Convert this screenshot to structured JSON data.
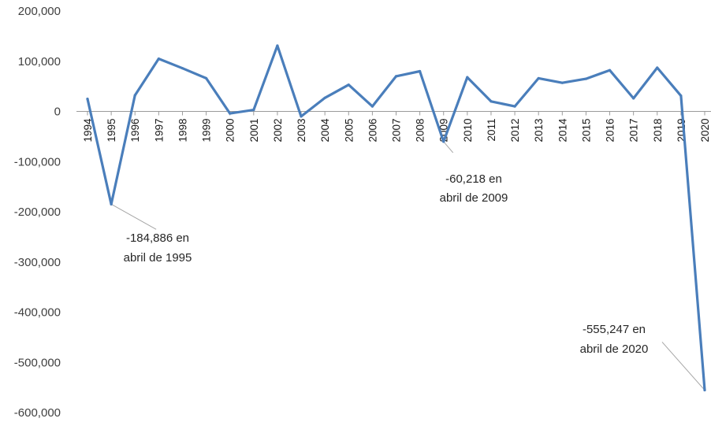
{
  "chart_data": {
    "type": "line",
    "title": "",
    "xlabel": "",
    "ylabel": "",
    "ylim": [
      -600000,
      200000
    ],
    "y_ticks": [
      200000,
      100000,
      0,
      -100000,
      -200000,
      -300000,
      -400000,
      -500000,
      -600000
    ],
    "y_tick_labels": [
      "200,000",
      "100,000",
      "0",
      "-100,000",
      "-200,000",
      "-300,000",
      "-400,000",
      "-500,000",
      "-600,000"
    ],
    "x": [
      "1994",
      "1995",
      "1996",
      "1997",
      "1998",
      "1999",
      "2000",
      "2001",
      "2002",
      "2003",
      "2004",
      "2005",
      "2006",
      "2007",
      "2008",
      "2009",
      "2010",
      "2011",
      "2012",
      "2013",
      "2014",
      "2015",
      "2016",
      "2017",
      "2018",
      "2019",
      "2020"
    ],
    "series": [
      {
        "color": "#4a7ebb",
        "values": [
          25000,
          -184886,
          32000,
          105000,
          86000,
          66000,
          -4000,
          3000,
          131000,
          -10000,
          27000,
          53000,
          10000,
          70000,
          80000,
          -60218,
          68000,
          20000,
          10000,
          66000,
          57000,
          65000,
          82000,
          26000,
          87000,
          31000,
          -555247
        ]
      }
    ],
    "annotations": [
      {
        "line1": "-184,886 en",
        "line2": "abril de 1995",
        "year_index": 1
      },
      {
        "line1": "-60,218 en",
        "line2": "abril de 2009",
        "year_index": 15
      },
      {
        "line1": "-555,247 en",
        "line2": "abril de 2020",
        "year_index": 26
      }
    ],
    "grid": false,
    "legend": "none"
  }
}
